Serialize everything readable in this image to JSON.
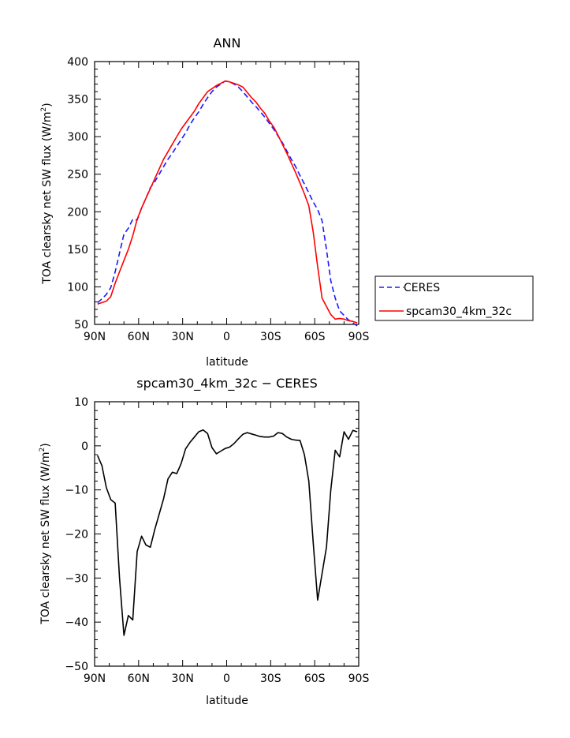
{
  "chart_data": [
    {
      "type": "line",
      "title": "ANN",
      "xlabel": "latitude",
      "ylabel": "TOA clearsky net SW flux (W/m",
      "ylabel_sup": "2",
      "ylabel_end": ")",
      "xlim": [
        90,
        -90
      ],
      "ylim": [
        50,
        400
      ],
      "xticks": [
        {
          "v": 90,
          "label": "90N"
        },
        {
          "v": 60,
          "label": "60N"
        },
        {
          "v": 30,
          "label": "30N"
        },
        {
          "v": 0,
          "label": "0"
        },
        {
          "v": -30,
          "label": "30S"
        },
        {
          "v": -60,
          "label": "60S"
        },
        {
          "v": -90,
          "label": "90S"
        }
      ],
      "yticks": [
        50,
        100,
        150,
        200,
        250,
        300,
        350,
        400
      ],
      "legend_position": "right",
      "series": [
        {
          "name": "CERES",
          "color": "#1a1aff",
          "dash": true,
          "x": [
            88,
            85,
            82,
            79,
            76,
            73,
            70,
            67,
            64,
            61,
            58,
            55,
            52,
            49,
            46,
            43,
            40,
            37,
            34,
            31,
            28,
            25,
            22,
            19,
            16,
            13,
            10,
            7,
            4,
            1,
            -2,
            -5,
            -8,
            -11,
            -14,
            -17,
            -20,
            -23,
            -26,
            -29,
            -32,
            -35,
            -38,
            -41,
            -44,
            -47,
            -50,
            -53,
            -56,
            -59,
            -62,
            -65,
            -68,
            -71,
            -74,
            -77,
            -80,
            -83,
            -86,
            -89
          ],
          "y": [
            79,
            84,
            90,
            99,
            120,
            145,
            170,
            178,
            190,
            189,
            205,
            218,
            232,
            240,
            250,
            260,
            270,
            278,
            287,
            296,
            305,
            316,
            325,
            333,
            343,
            352,
            360,
            366,
            370,
            374,
            373,
            370,
            366,
            360,
            353,
            346,
            340,
            333,
            326,
            318,
            310,
            301,
            292,
            281,
            270,
            260,
            248,
            237,
            225,
            213,
            203,
            188,
            150,
            108,
            85,
            68,
            62,
            56,
            52,
            48
          ]
        },
        {
          "name": "spcam30_4km_32c",
          "color": "#ff0000",
          "dash": false,
          "x": [
            88,
            85,
            82,
            79,
            76,
            73,
            70,
            67,
            64,
            61,
            58,
            55,
            52,
            49,
            46,
            43,
            40,
            37,
            34,
            31,
            28,
            25,
            22,
            19,
            16,
            13,
            10,
            7,
            4,
            1,
            -2,
            -5,
            -8,
            -11,
            -14,
            -17,
            -20,
            -23,
            -26,
            -29,
            -32,
            -35,
            -38,
            -41,
            -44,
            -47,
            -50,
            -53,
            -56,
            -59,
            -62,
            -65,
            -68,
            -71,
            -74,
            -77,
            -80,
            -83,
            -86,
            -89
          ],
          "y": [
            77,
            79,
            81,
            87,
            105,
            120,
            135,
            150,
            168,
            190,
            205,
            218,
            231,
            244,
            257,
            270,
            280,
            290,
            300,
            310,
            318,
            326,
            334,
            344,
            352,
            360,
            364,
            368,
            371,
            374,
            373,
            371,
            369,
            366,
            359,
            352,
            346,
            338,
            331,
            321,
            313,
            302,
            290,
            278,
            265,
            252,
            238,
            224,
            208,
            173,
            127,
            85,
            74,
            63,
            57,
            58,
            57,
            55,
            54,
            52
          ]
        }
      ]
    },
    {
      "type": "line",
      "title": "spcam30_4km_32c − CERES",
      "xlabel": "latitude",
      "ylabel": "TOA clearsky net SW flux (W/m",
      "ylabel_sup": "2",
      "ylabel_end": ")",
      "xlim": [
        90,
        -90
      ],
      "ylim": [
        -50,
        10
      ],
      "xticks": [
        {
          "v": 90,
          "label": "90N"
        },
        {
          "v": 60,
          "label": "60N"
        },
        {
          "v": 30,
          "label": "30N"
        },
        {
          "v": 0,
          "label": "0"
        },
        {
          "v": -30,
          "label": "30S"
        },
        {
          "v": -60,
          "label": "60S"
        },
        {
          "v": -90,
          "label": "90S"
        }
      ],
      "yticks": [
        -50,
        -40,
        -30,
        -20,
        -10,
        0,
        10
      ],
      "series": [
        {
          "color": "#000000",
          "dash": false,
          "x": [
            88,
            85,
            82,
            79,
            76,
            73,
            70,
            67,
            64,
            61,
            58,
            55,
            52,
            49,
            46,
            43,
            40,
            37,
            34,
            31,
            28,
            25,
            22,
            19,
            16,
            13,
            10,
            7,
            4,
            1,
            -2,
            -5,
            -8,
            -11,
            -14,
            -17,
            -20,
            -23,
            -26,
            -29,
            -32,
            -35,
            -38,
            -41,
            -44,
            -47,
            -50,
            -53,
            -56,
            -59,
            -62,
            -65,
            -68,
            -71,
            -74,
            -77,
            -80,
            -83,
            -86,
            -89
          ],
          "y": [
            -2.2,
            -4.5,
            -9.5,
            -12.2,
            -13,
            -30,
            -43,
            -38.5,
            -39.5,
            -24,
            -20.5,
            -22.5,
            -23,
            -19,
            -15.5,
            -12,
            -7.5,
            -6,
            -6.3,
            -4,
            -0.7,
            0.8,
            2,
            3.2,
            3.6,
            2.8,
            -0.4,
            -1.8,
            -1.2,
            -0.6,
            -0.3,
            0.5,
            1.6,
            2.6,
            3,
            2.7,
            2.4,
            2.1,
            2,
            2,
            2.2,
            3,
            2.8,
            2,
            1.5,
            1.3,
            1.2,
            -2,
            -8,
            -22,
            -35,
            -29,
            -23,
            -10,
            -1,
            -2.5,
            3.2,
            1.5,
            3.5,
            3.2
          ]
        }
      ]
    }
  ]
}
